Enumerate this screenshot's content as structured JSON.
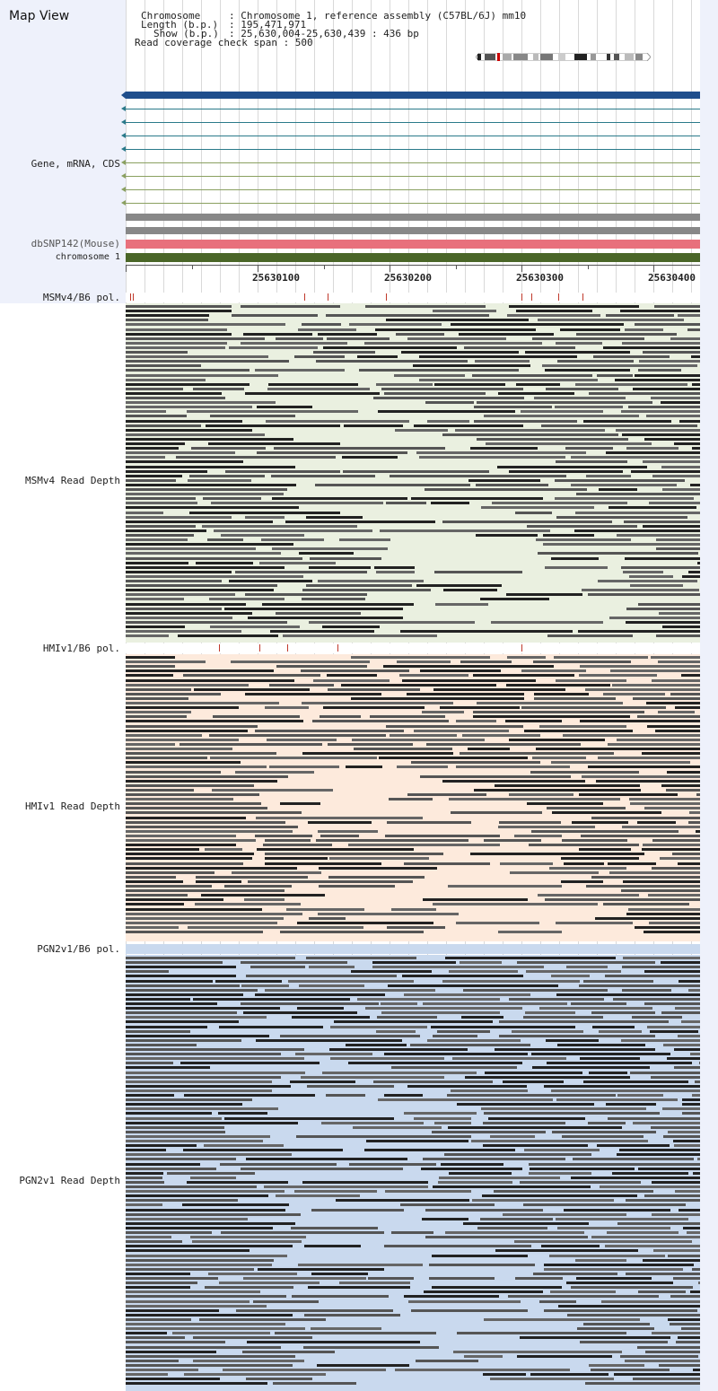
{
  "title": "Map View",
  "info": {
    "chromosome_key": "Chromosome",
    "chromosome_val": ": Chromosome 1, reference assembly (C57BL/6J) mm10",
    "length_key": "Length (b.p.)",
    "length_val": ": 195,471,971",
    "show_key": "Show (b.p.)",
    "show_val": ": 25,630,004-25,630,439 : 436 bp",
    "coverage": "Read coverage check span : 500"
  },
  "tracks": {
    "gene": "Gene, mRNA, CDS",
    "dbsnp": "dbSNP142(Mouse)",
    "chromosome": "chromosome 1",
    "msm_pol": "MSMv4/B6 pol.",
    "msm_depth": "MSMv4 Read Depth",
    "hmi_pol": "HMIv1/B6 pol.",
    "hmi_depth": "HMIv1 Read Depth",
    "pgn_pol": "PGN2v1/B6 pol.",
    "pgn_depth": "PGN2v1 Read Depth"
  },
  "ruler": {
    "ticks": [
      "25630100",
      "25630200",
      "25630300",
      "25630400"
    ]
  },
  "colors": {
    "gene_main": "#1f4e8c",
    "transcript": "#2a7a8a",
    "cds": "#8aa060",
    "dbsnp": "#e8707c",
    "chromosome": "#4a6628",
    "msm_bg": "#eaf0e0",
    "hmi_bg": "#fdeadc",
    "pgn_bg": "#c9d9ee",
    "pol_mark": "#c0392b"
  }
}
